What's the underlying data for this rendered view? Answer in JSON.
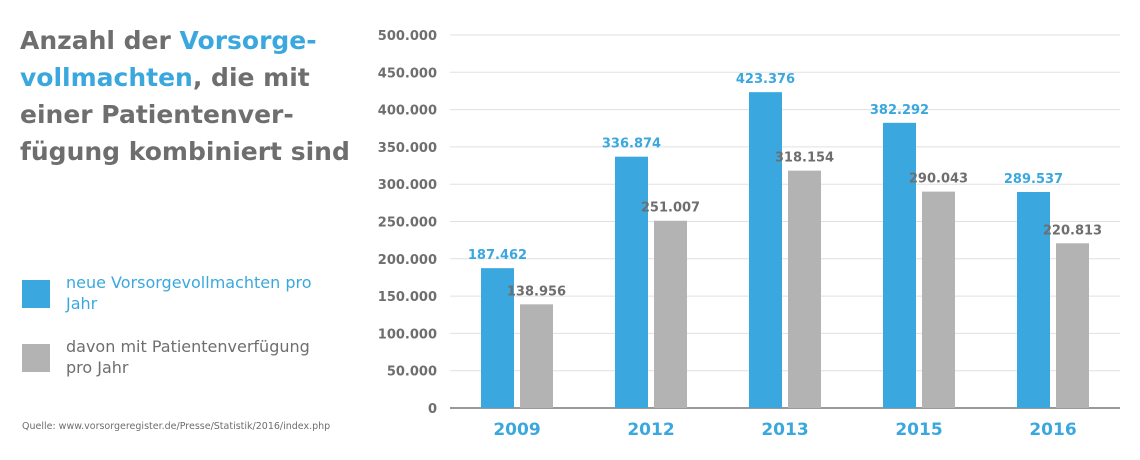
{
  "title": {
    "part1": "Anzahl der ",
    "part2": "Vorsorge-vollmachten",
    "part3": ", die mit einer Patientenver-fügung kombiniert sind"
  },
  "colors": {
    "blue": "#3aa8df",
    "gray": "#b3b3b3",
    "text_gray": "#6e6e6e",
    "axis": "#999999",
    "grid": "#e0e0e0"
  },
  "legend": [
    {
      "label": "neue Vorsorgevollmachten pro Jahr",
      "color": "#3aa8df"
    },
    {
      "label": "davon mit Patientenverfügung pro Jahr",
      "color": "#b3b3b3"
    }
  ],
  "source": "Quelle: www.vorsorgeregister.de/Presse/Statistik/2016/index.php",
  "chart_data": {
    "type": "bar",
    "categories": [
      "2009",
      "2012",
      "2013",
      "2015",
      "2016"
    ],
    "series": [
      {
        "name": "neue Vorsorgevollmachten pro Jahr",
        "values": [
          187462,
          336874,
          423376,
          382292,
          289537
        ],
        "labels": [
          "187.462",
          "336.874",
          "423.376",
          "382.292",
          "289.537"
        ],
        "color": "#3aa8df"
      },
      {
        "name": "davon mit Patientenverfügung pro Jahr",
        "values": [
          138956,
          251007,
          318154,
          290043,
          220813
        ],
        "labels": [
          "138.956",
          "251.007",
          "318.154",
          "290.043",
          "220.813"
        ],
        "color": "#b3b3b3"
      }
    ],
    "title": "Anzahl der Vorsorgevollmachten, die mit einer Patientenverfügung kombiniert sind",
    "xlabel": "",
    "ylabel": "",
    "ylim": [
      0,
      500000
    ],
    "yticks": [
      0,
      50000,
      100000,
      150000,
      200000,
      250000,
      300000,
      350000,
      400000,
      450000,
      500000
    ],
    "ytick_labels": [
      "0",
      "50.000",
      "100.000",
      "150.000",
      "200.000",
      "250.000",
      "300.000",
      "350.000",
      "400.000",
      "450.000",
      "500.000"
    ],
    "grid": true,
    "legend_position": "left"
  }
}
